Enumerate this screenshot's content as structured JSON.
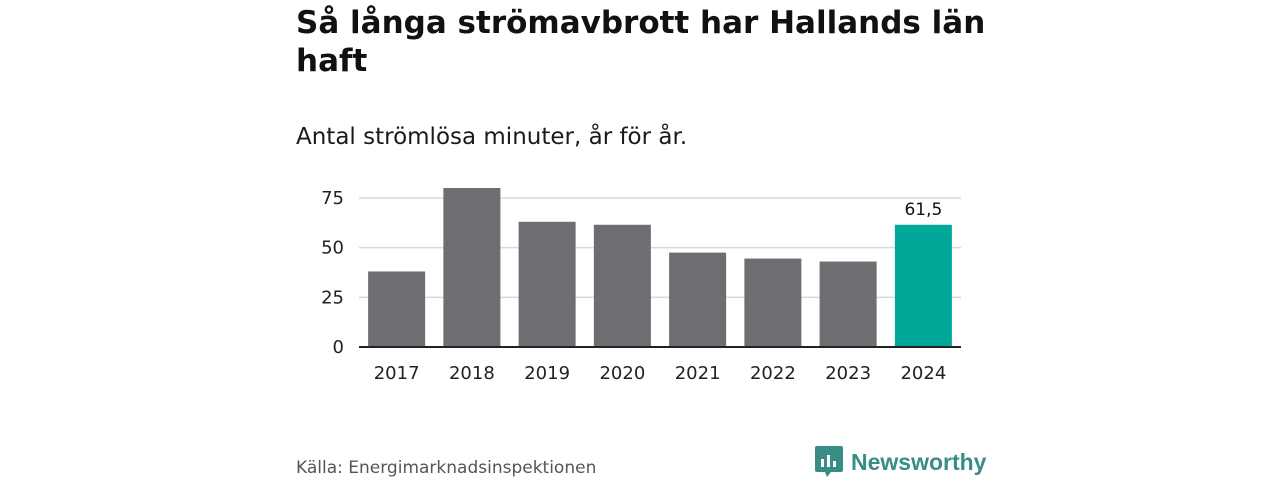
{
  "header": {
    "title": "Så långa strömavbrott har Hallands län haft",
    "subtitle": "Antal strömlösa minuter, år för år."
  },
  "footer": {
    "source": "Källa: Energimarknadsinspektionen",
    "brand": "Newsworthy",
    "brand_icon": "bar-chart-speech-bubble-icon"
  },
  "colors": {
    "bar_default": "#6e6d72",
    "bar_highlight": "#00a89a",
    "grid": "#d9d9d9",
    "axis": "#222222",
    "brand": "#3a8c86"
  },
  "chart_data": {
    "type": "bar",
    "title": "Så långa strömavbrott har Hallands län haft",
    "subtitle": "Antal strömlösa minuter, år för år.",
    "categories": [
      "2017",
      "2018",
      "2019",
      "2020",
      "2021",
      "2022",
      "2023",
      "2024"
    ],
    "values": [
      38,
      80,
      63,
      61.5,
      47.5,
      44.5,
      43,
      61.5
    ],
    "highlight_index": 7,
    "data_labels": [
      {
        "index": 7,
        "text": "61,5"
      }
    ],
    "y_ticks": [
      "0",
      "25",
      "50",
      "75"
    ],
    "y_tick_values": [
      0,
      25,
      50,
      75
    ],
    "ylim": [
      0,
      80
    ],
    "grid": true,
    "xlabel": "",
    "ylabel": ""
  }
}
